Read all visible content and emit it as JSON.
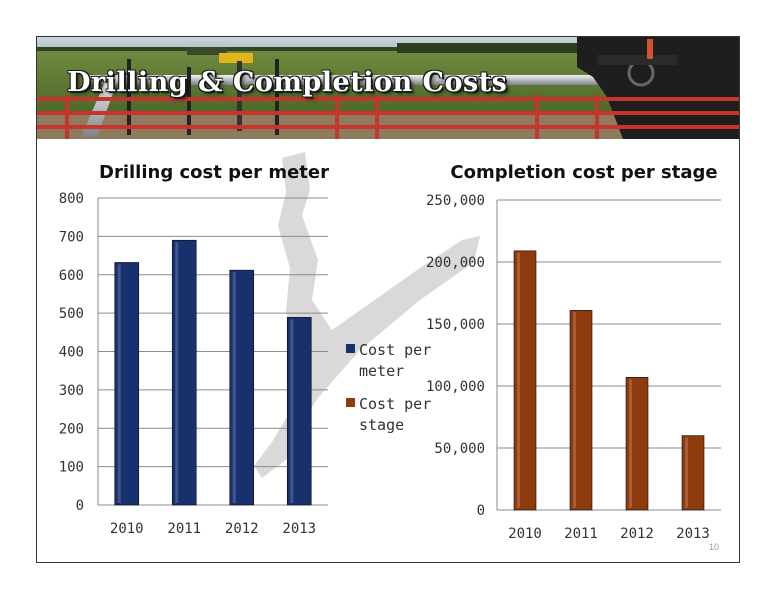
{
  "slide": {
    "title": "Drilling & Completion Costs",
    "slide_number": "10"
  },
  "chart_data": [
    {
      "type": "bar",
      "title": "Drilling cost per meter",
      "categories": [
        "2010",
        "2011",
        "2012",
        "2013"
      ],
      "series": [
        {
          "name": "Cost per meter",
          "values": [
            632,
            690,
            612,
            489
          ],
          "color": "#17306e"
        }
      ],
      "ylim": [
        0,
        800
      ],
      "yticks": [
        "0",
        "100",
        "200",
        "300",
        "400",
        "500",
        "600",
        "700",
        "800"
      ],
      "ytick_values": [
        0,
        100,
        200,
        300,
        400,
        500,
        600,
        700,
        800
      ],
      "grid": true
    },
    {
      "type": "bar",
      "title": "Completion cost per stage",
      "categories": [
        "2010",
        "2011",
        "2012",
        "2013"
      ],
      "series": [
        {
          "name": "Cost per stage",
          "values": [
            209000,
            161000,
            107000,
            60000
          ],
          "color": "#8f3a0c"
        }
      ],
      "ylim": [
        0,
        250000
      ],
      "yticks": [
        "0",
        "50,000",
        "100,000",
        "150,000",
        "200,000",
        "250,000"
      ],
      "ytick_values": [
        0,
        50000,
        100000,
        150000,
        200000,
        250000
      ],
      "grid": true
    }
  ],
  "legend": {
    "position": "center",
    "items": [
      {
        "line1": "Cost per",
        "line2": "meter",
        "color": "#17306e"
      },
      {
        "line1": "Cost per",
        "line2": "stage",
        "color": "#8f3a0c"
      }
    ]
  }
}
